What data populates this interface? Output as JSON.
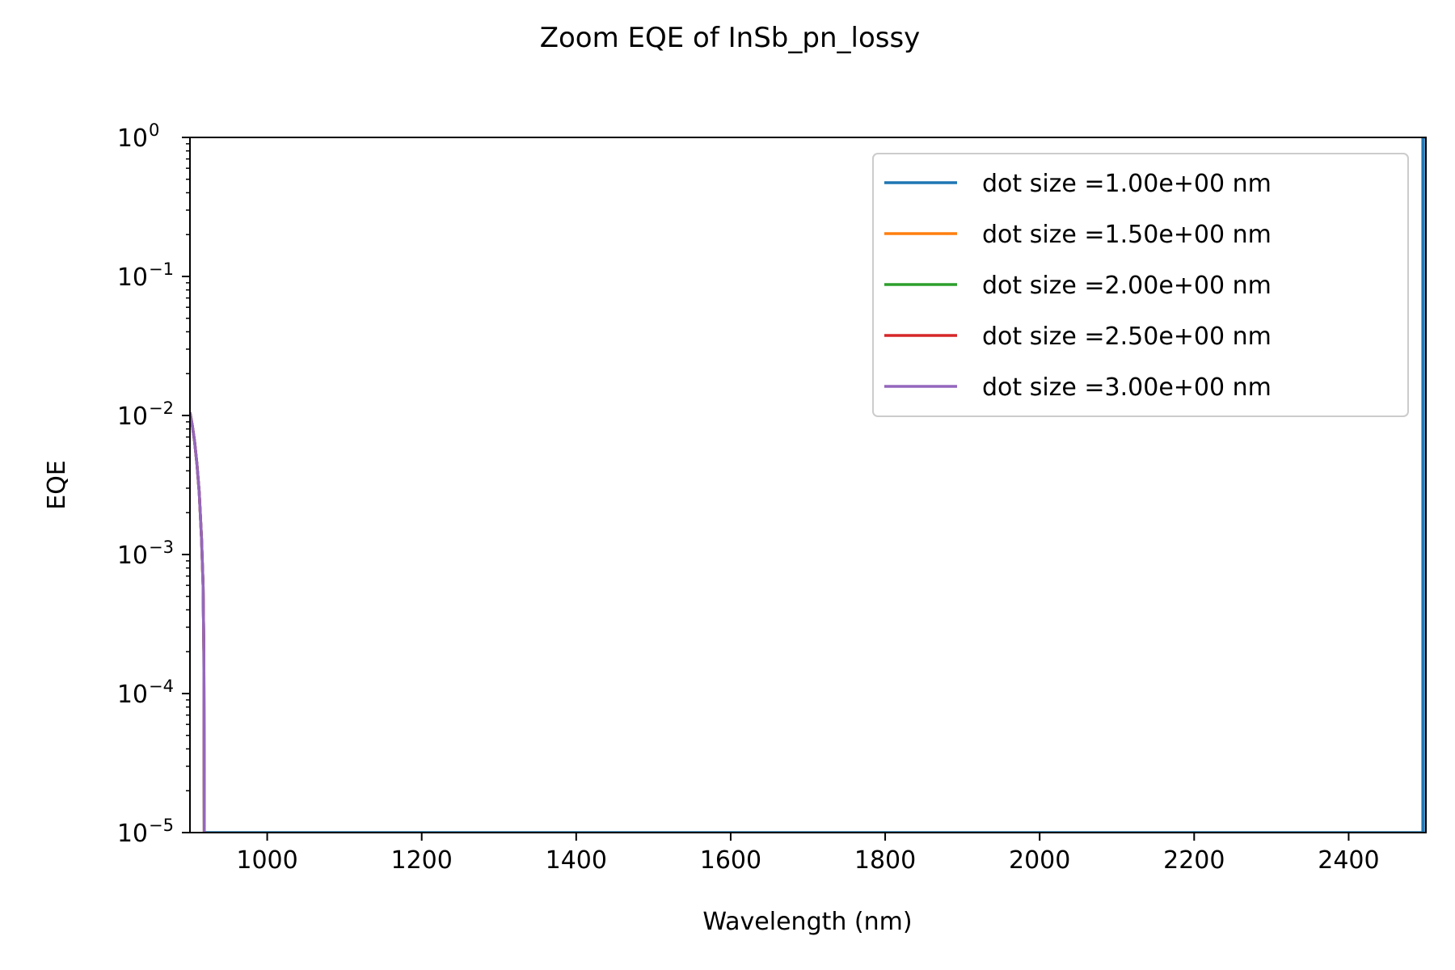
{
  "chart_data": {
    "type": "line",
    "title": "Zoom EQE of InSb_pn_lossy",
    "xlabel": "Wavelength (nm)",
    "ylabel": "EQE",
    "xlim": [
      900,
      2500
    ],
    "ylim": [
      1e-05,
      1
    ],
    "yscale": "log",
    "grid": false,
    "legend_position": "top-right",
    "x_ticks": [
      1000,
      1200,
      1400,
      1600,
      1800,
      2000,
      2200,
      2400
    ],
    "x_tick_labels": [
      "1000",
      "1200",
      "1400",
      "1600",
      "1800",
      "2000",
      "2200",
      "2400"
    ],
    "y_ticks": [
      {
        "value": 1,
        "base": "10",
        "exp": "0"
      },
      {
        "value": 0.1,
        "base": "10",
        "exp": "−1"
      },
      {
        "value": 0.01,
        "base": "10",
        "exp": "−2"
      },
      {
        "value": 0.001,
        "base": "10",
        "exp": "−3"
      },
      {
        "value": 0.0001,
        "base": "10",
        "exp": "−4"
      },
      {
        "value": 1e-05,
        "base": "10",
        "exp": "−5"
      }
    ],
    "series": [
      {
        "name": "dot size =1.00e+00 nm",
        "color": "#1f77b4",
        "x": [
          900,
          903,
          906,
          909,
          912,
          915,
          917,
          918,
          918.5,
          2496,
          2496,
          2500,
          2500
        ],
        "y": [
          0.0105,
          0.0085,
          0.0065,
          0.0045,
          0.0028,
          0.0013,
          0.0006,
          0.0002,
          1e-05,
          1e-05,
          1,
          1,
          1e-05
        ]
      },
      {
        "name": "dot size =1.50e+00 nm",
        "color": "#ff7f0e",
        "x": [
          900,
          903,
          906,
          909,
          912,
          915,
          917,
          918,
          918.5
        ],
        "y": [
          0.0105,
          0.0085,
          0.0065,
          0.0045,
          0.0028,
          0.0013,
          0.0006,
          0.0002,
          1e-05
        ]
      },
      {
        "name": "dot size =2.00e+00 nm",
        "color": "#2ca02c",
        "x": [
          900,
          903,
          906,
          909,
          912,
          915,
          917,
          918,
          918.5
        ],
        "y": [
          0.0105,
          0.0085,
          0.0065,
          0.0045,
          0.0028,
          0.0013,
          0.0006,
          0.0002,
          1e-05
        ]
      },
      {
        "name": "dot size =2.50e+00 nm",
        "color": "#d62728",
        "x": [
          900,
          903,
          906,
          909,
          912,
          915,
          917,
          918,
          918.5
        ],
        "y": [
          0.0105,
          0.0085,
          0.0065,
          0.0045,
          0.0028,
          0.0013,
          0.0006,
          0.0002,
          1e-05
        ]
      },
      {
        "name": "dot size =3.00e+00 nm",
        "color": "#9467bd",
        "x": [
          900,
          903,
          906,
          909,
          912,
          915,
          917,
          918,
          918.5
        ],
        "y": [
          0.0105,
          0.0085,
          0.0065,
          0.0045,
          0.0028,
          0.0013,
          0.0006,
          0.0002,
          1e-05
        ]
      }
    ]
  }
}
